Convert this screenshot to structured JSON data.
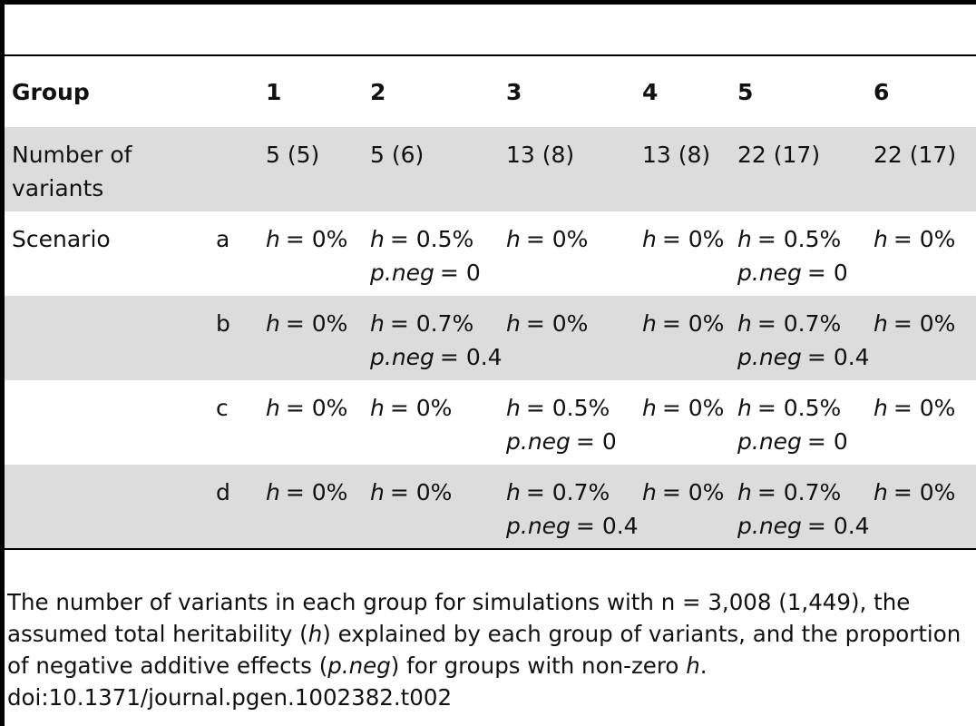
{
  "table": {
    "header": {
      "label": "Group",
      "groups": [
        "1",
        "2",
        "3",
        "4",
        "5",
        "6"
      ]
    },
    "count_row": {
      "label": "Number of variants",
      "cells": [
        "5 (5)",
        "5 (6)",
        "13 (8)",
        "13 (8)",
        "22 (17)",
        "22 (17)"
      ]
    },
    "scenario_label": "Scenario",
    "scenarios": [
      {
        "name": "a",
        "cells": [
          [
            {
              "var": "h",
              "rest": "= 0%"
            }
          ],
          [
            {
              "var": "h",
              "rest": "= 0.5%"
            },
            {
              "var": "p.neg",
              "rest": "= 0"
            }
          ],
          [
            {
              "var": "h",
              "rest": "= 0%"
            }
          ],
          [
            {
              "var": "h",
              "rest": "= 0%"
            }
          ],
          [
            {
              "var": "h",
              "rest": "= 0.5%"
            },
            {
              "var": "p.neg",
              "rest": "= 0"
            }
          ],
          [
            {
              "var": "h",
              "rest": "= 0%"
            }
          ]
        ]
      },
      {
        "name": "b",
        "cells": [
          [
            {
              "var": "h",
              "rest": "= 0%"
            }
          ],
          [
            {
              "var": "h",
              "rest": "= 0.7%"
            },
            {
              "var": "p.neg",
              "rest": "= 0.4"
            }
          ],
          [
            {
              "var": "h",
              "rest": "= 0%"
            }
          ],
          [
            {
              "var": "h",
              "rest": "= 0%"
            }
          ],
          [
            {
              "var": "h",
              "rest": "= 0.7%"
            },
            {
              "var": "p.neg",
              "rest": "= 0.4"
            }
          ],
          [
            {
              "var": "h",
              "rest": "= 0%"
            }
          ]
        ]
      },
      {
        "name": "c",
        "cells": [
          [
            {
              "var": "h",
              "rest": "= 0%"
            }
          ],
          [
            {
              "var": "h",
              "rest": "= 0%"
            }
          ],
          [
            {
              "var": "h",
              "rest": "= 0.5%"
            },
            {
              "var": "p.neg",
              "rest": "= 0"
            }
          ],
          [
            {
              "var": "h",
              "rest": "= 0%"
            }
          ],
          [
            {
              "var": "h",
              "rest": "= 0.5%"
            },
            {
              "var": "p.neg",
              "rest": "= 0"
            }
          ],
          [
            {
              "var": "h",
              "rest": "= 0%"
            }
          ]
        ]
      },
      {
        "name": "d",
        "cells": [
          [
            {
              "var": "h",
              "rest": "= 0%"
            }
          ],
          [
            {
              "var": "h",
              "rest": "= 0%"
            }
          ],
          [
            {
              "var": "h",
              "rest": "= 0.7%"
            },
            {
              "var": "p.neg",
              "rest": "= 0.4"
            }
          ],
          [
            {
              "var": "h",
              "rest": "= 0%"
            }
          ],
          [
            {
              "var": "h",
              "rest": "= 0.7%"
            },
            {
              "var": "p.neg",
              "rest": "= 0.4"
            }
          ],
          [
            {
              "var": "h",
              "rest": "= 0%"
            }
          ]
        ]
      }
    ]
  },
  "footnote": {
    "parts": [
      {
        "text": "The number of variants in each group for simulations with n = 3,008 (1,449), the assumed total heritability ("
      },
      {
        "text": "h",
        "italic": true
      },
      {
        "text": ") explained by each group of variants, and the proportion of negative additive effects ("
      },
      {
        "text": "p.neg",
        "italic": true
      },
      {
        "text": ") for groups with non-zero "
      },
      {
        "text": "h",
        "italic": true
      },
      {
        "text": "."
      }
    ],
    "doi": "doi:10.1371/journal.pgen.1002382.t002"
  }
}
